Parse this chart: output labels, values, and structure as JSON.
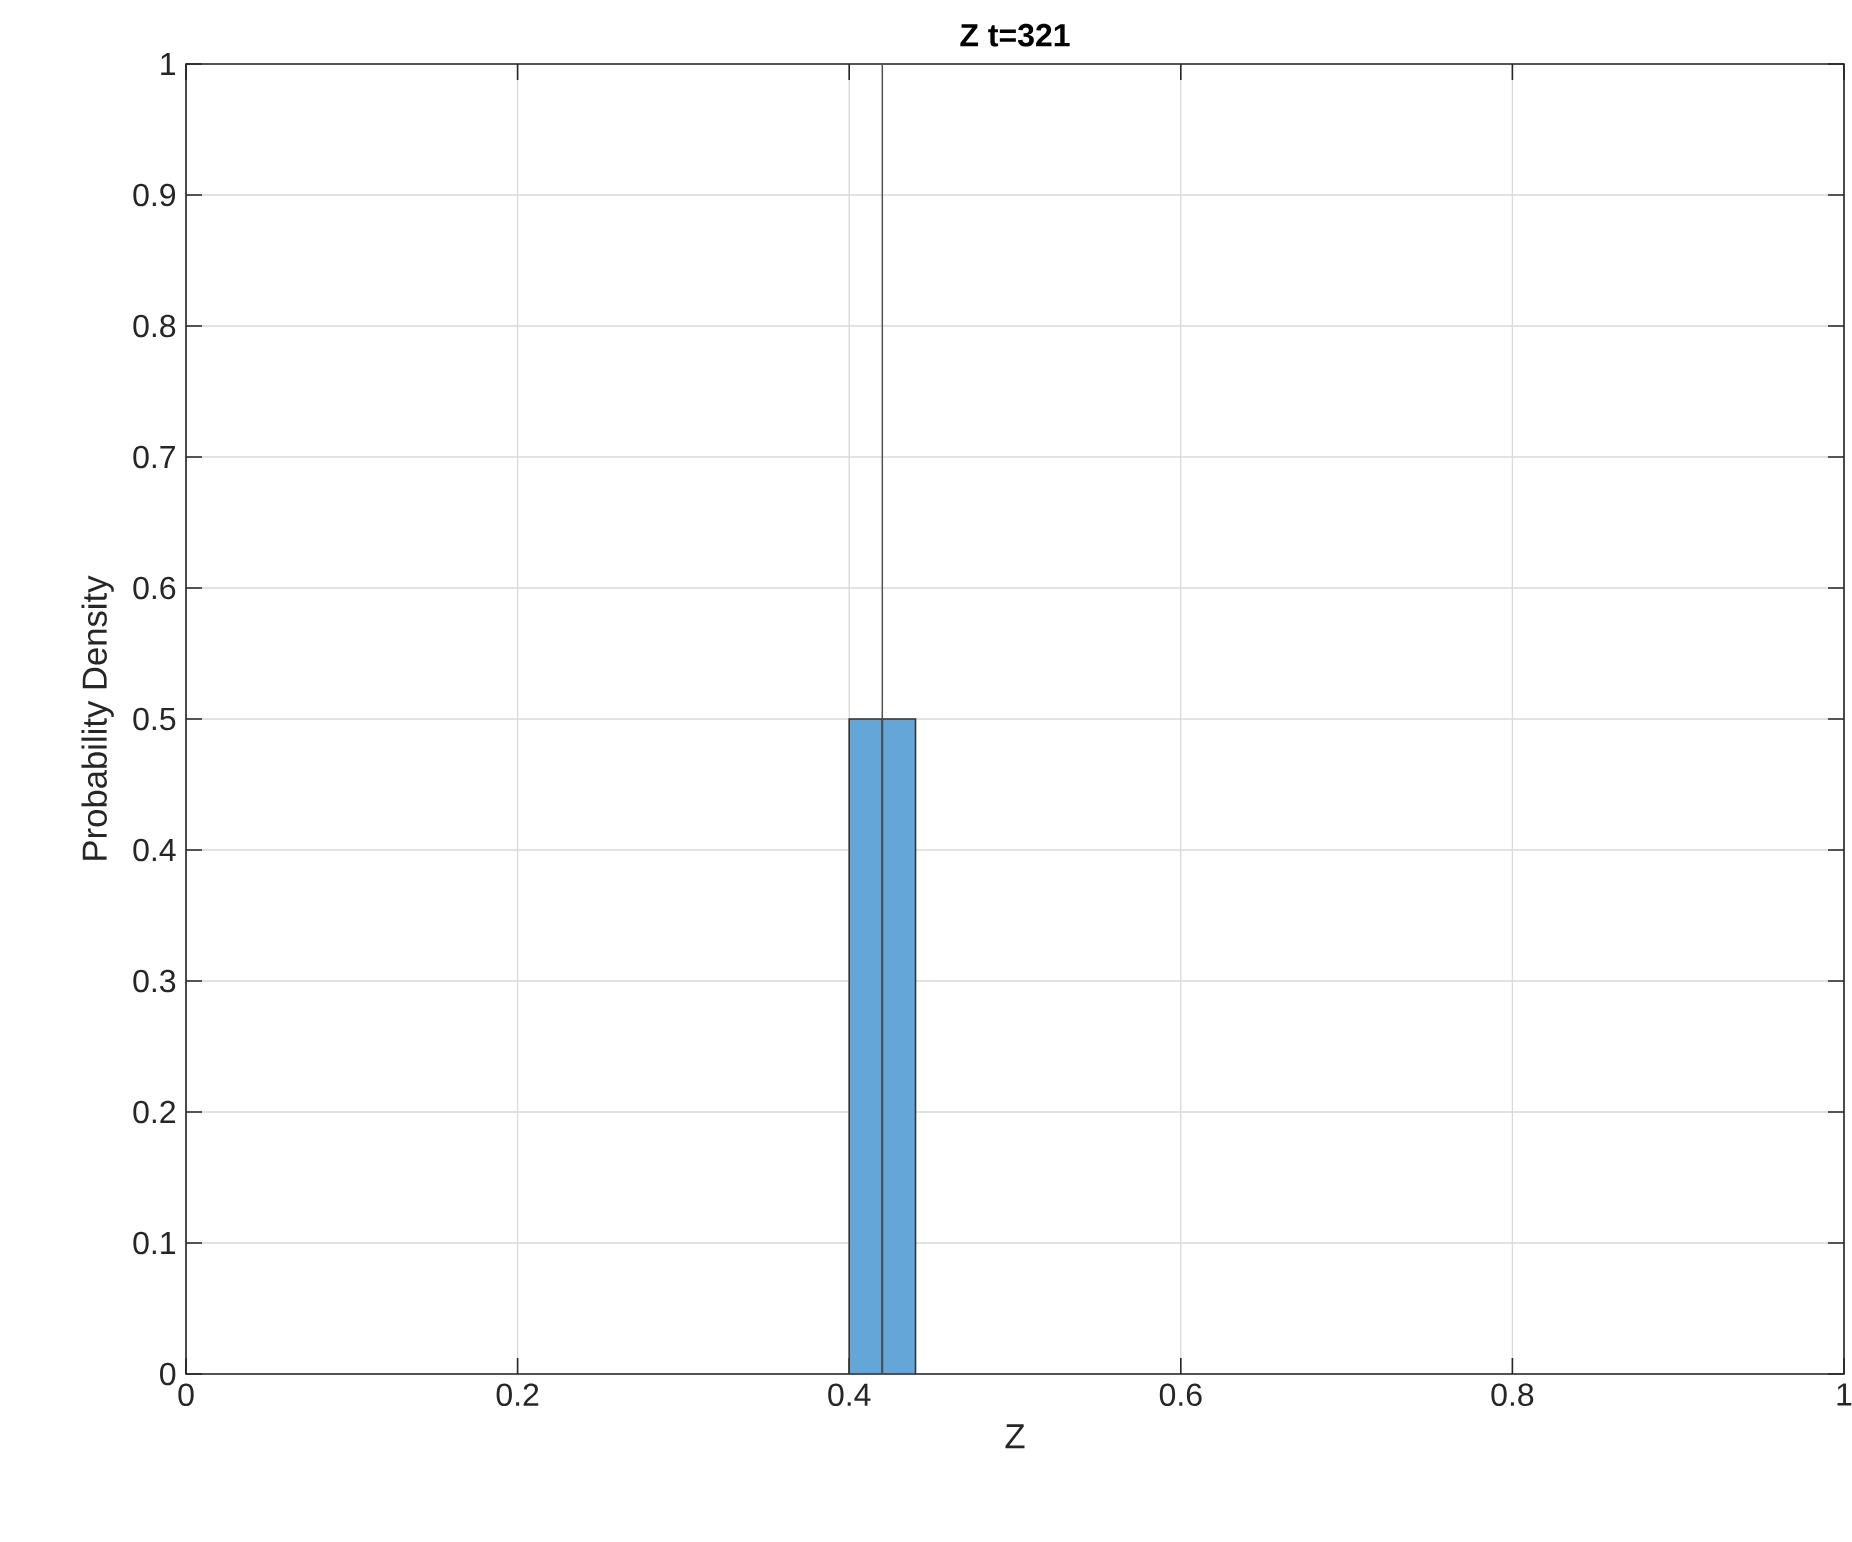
{
  "chart_data": {
    "type": "histogram",
    "title": "Z t=321",
    "xlabel": "Z",
    "ylabel": "Probability Density",
    "bins": [
      0.4,
      0.42,
      0.44
    ],
    "values": [
      0.5,
      0.5
    ],
    "color": "#64a6d8",
    "xlim": [
      0,
      1
    ],
    "ylim": [
      0,
      1
    ],
    "xticks": [
      0,
      0.2,
      0.4,
      0.6,
      0.8,
      1
    ],
    "yticks": [
      0,
      0.1,
      0.2,
      0.3,
      0.4,
      0.5,
      0.6,
      0.7,
      0.8,
      0.9,
      1
    ],
    "grid": true,
    "ref_lines": [
      {
        "axis": "x",
        "value": 0.42,
        "color": "#505050"
      }
    ]
  }
}
